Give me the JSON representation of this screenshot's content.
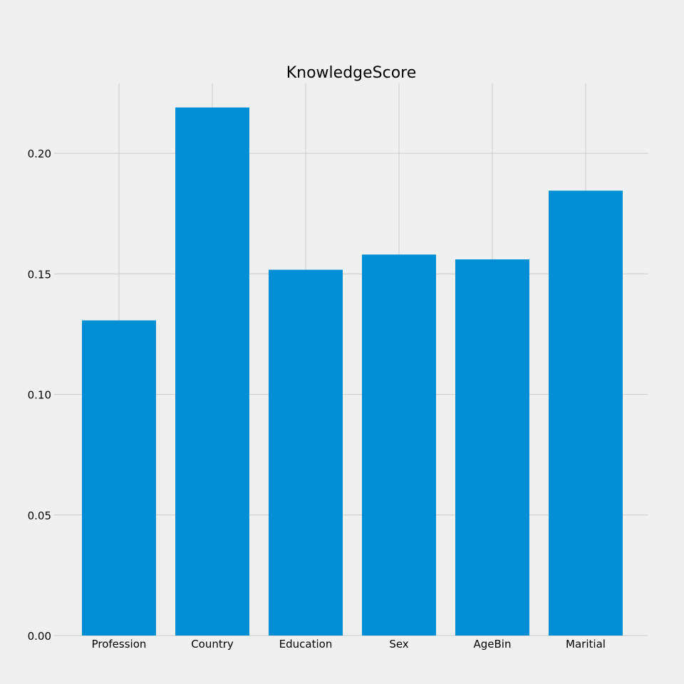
{
  "chart_data": {
    "type": "bar",
    "title": "KnowledgeScore",
    "xlabel": "",
    "ylabel": "",
    "categories": [
      "Profession",
      "Country",
      "Education",
      "Sex",
      "AgeBin",
      "Maritial"
    ],
    "values": [
      0.1307,
      0.219,
      0.1517,
      0.158,
      0.156,
      0.1845
    ],
    "ylim": [
      0,
      0.229
    ],
    "yticks": [
      0.0,
      0.05,
      0.1,
      0.15,
      0.2
    ],
    "ytick_labels": [
      "0.00",
      "0.05",
      "0.10",
      "0.15",
      "0.20"
    ],
    "grid": true,
    "bar_color": "#008fd5",
    "background_color": "#f0f0f0",
    "grid_color": "#cbcbcb"
  }
}
